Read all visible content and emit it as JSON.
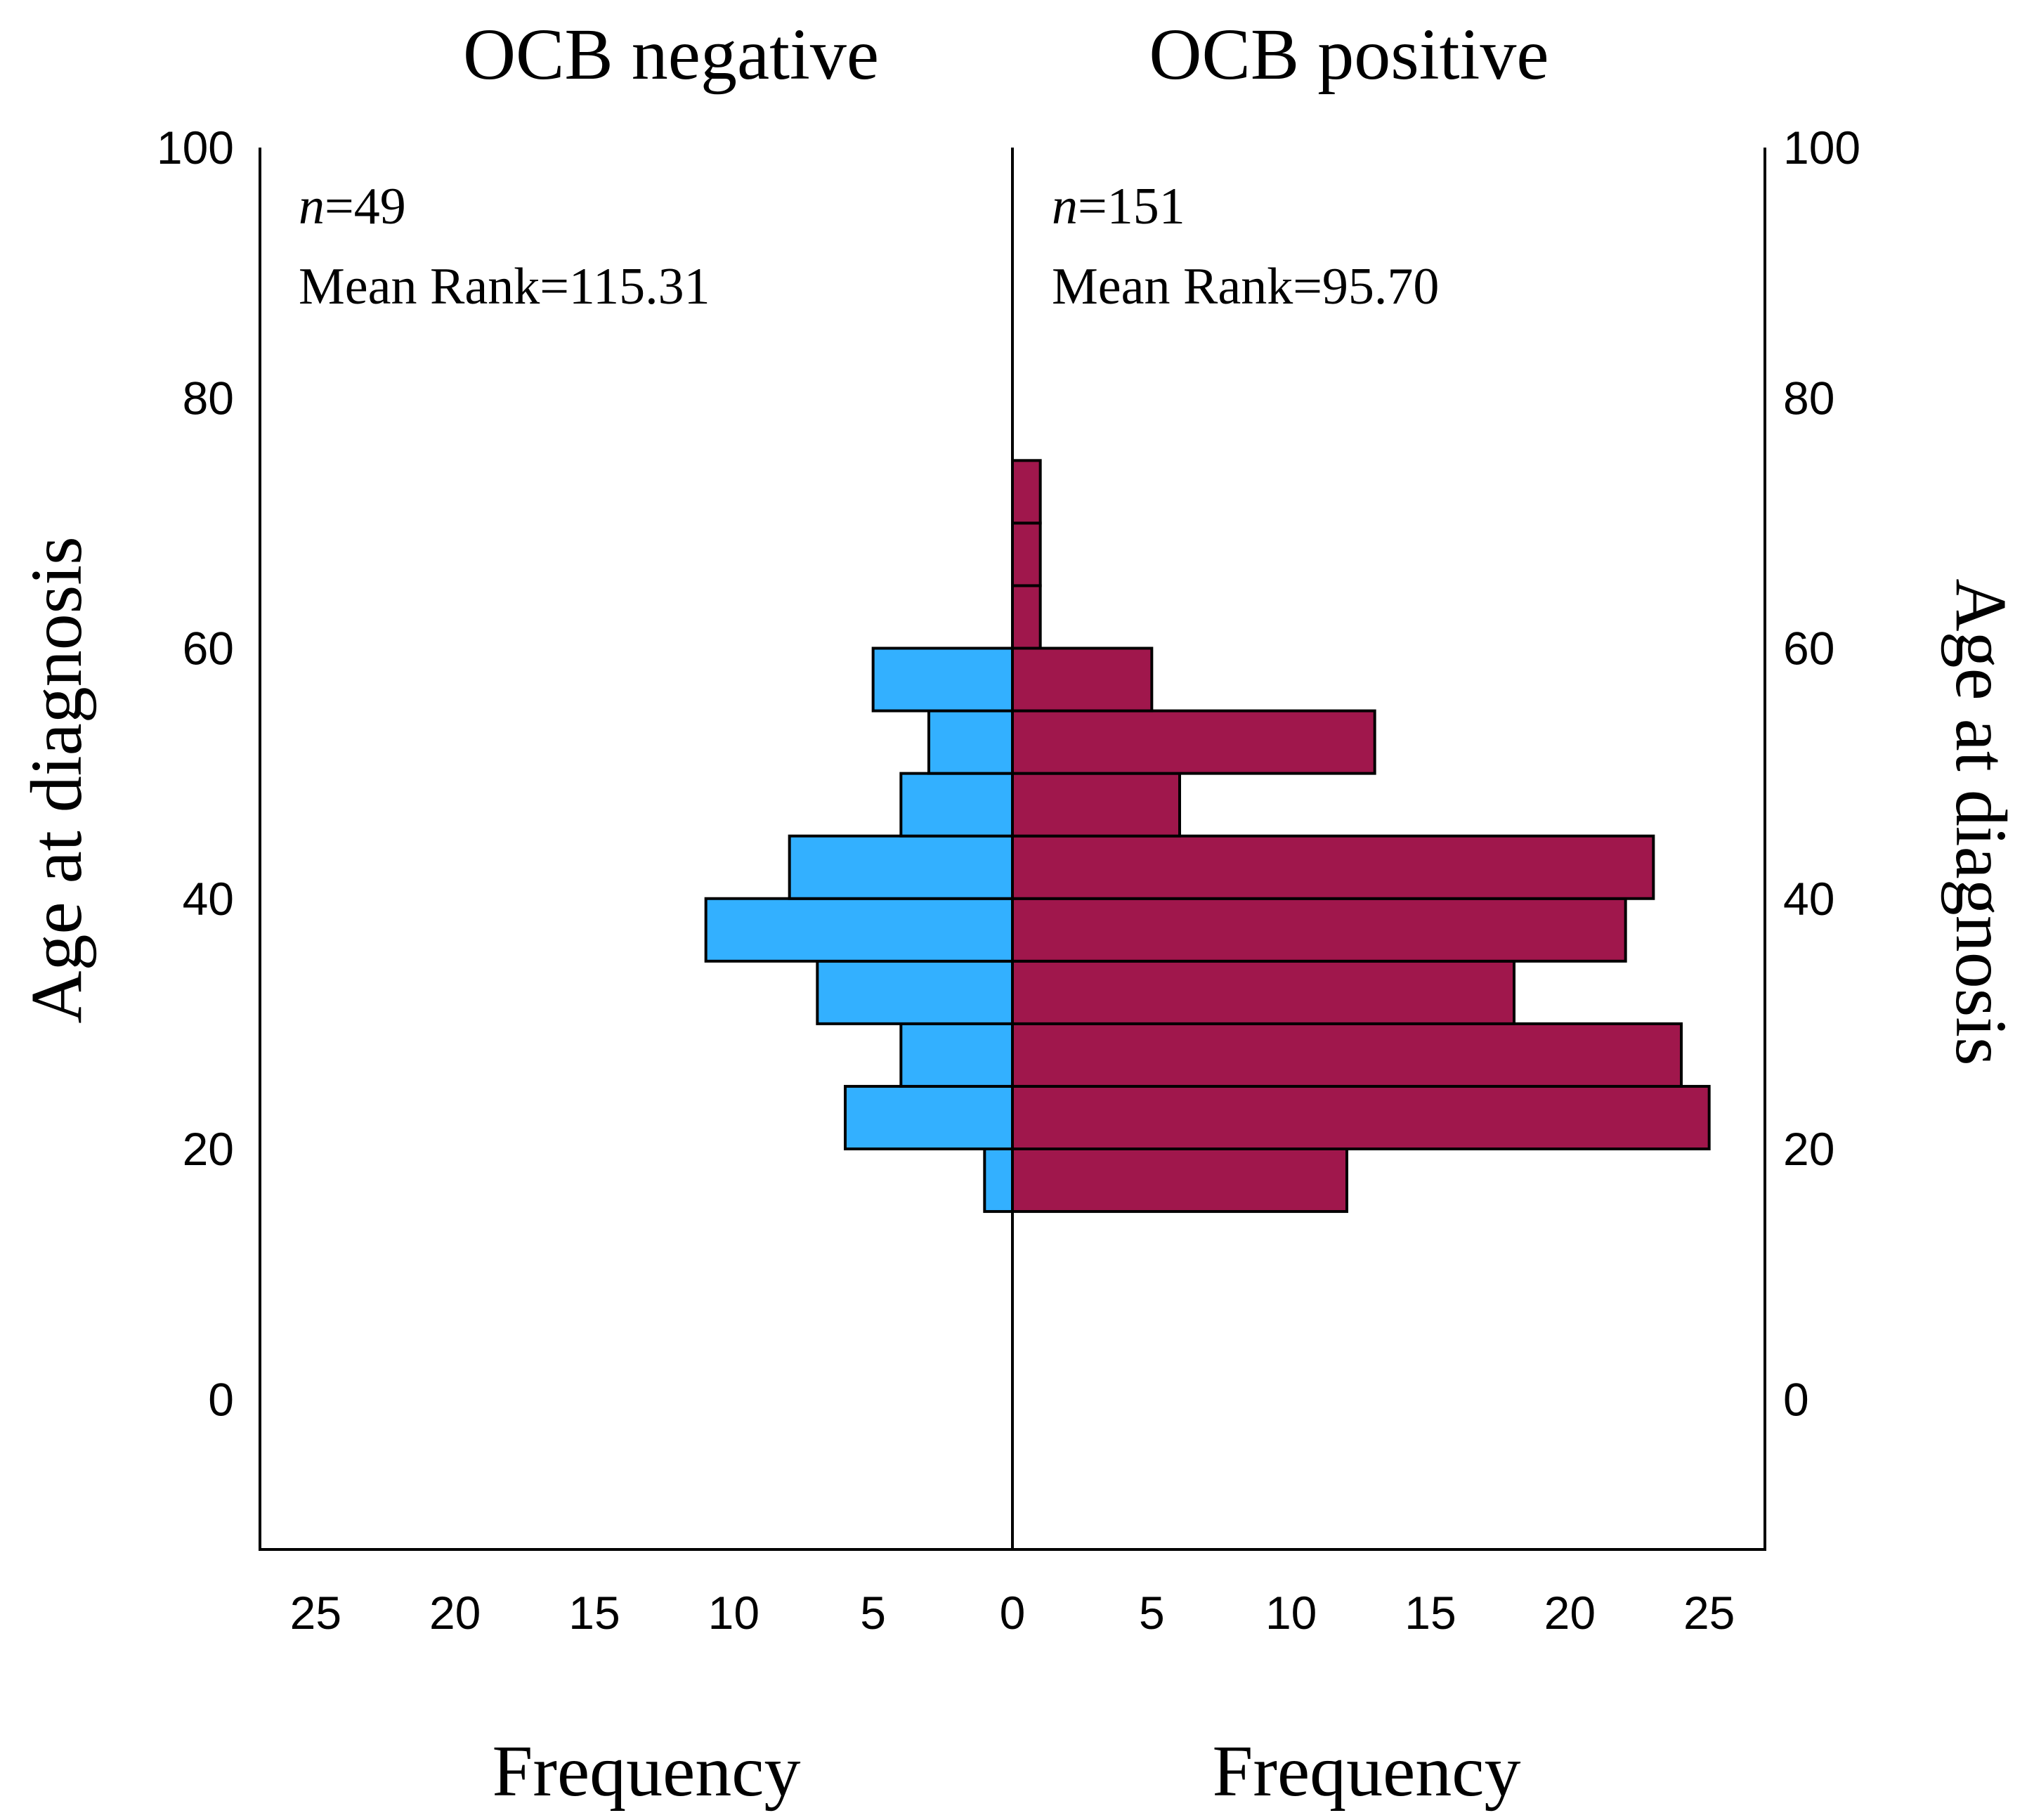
{
  "chart_data": {
    "type": "bar",
    "subtype": "population-pyramid",
    "orientation": "horizontal",
    "panels": [
      {
        "name": "OCB negative",
        "title": "OCB negative",
        "n_label": "n",
        "n_value": "=49",
        "mean_rank_label": "Mean Rank=115.31",
        "color": "#33b0ff",
        "xlabel": "Frequency",
        "xlim": [
          0,
          27
        ],
        "xticks": [
          "25",
          "20",
          "15",
          "10",
          "5",
          "0"
        ],
        "xtick_values": [
          25,
          20,
          15,
          10,
          5,
          0
        ]
      },
      {
        "name": "OCB positive",
        "title": "OCB positive",
        "n_label": "n",
        "n_value": "=151",
        "mean_rank_label": "Mean Rank=95.70",
        "color": "#a0174c",
        "xlabel": "Frequency",
        "xlim": [
          0,
          27
        ],
        "xticks": [
          "5",
          "10",
          "15",
          "20",
          "25"
        ],
        "xtick_values": [
          5,
          10,
          15,
          20,
          25
        ]
      }
    ],
    "bins": [
      {
        "from": 15,
        "to": 20
      },
      {
        "from": 20,
        "to": 25
      },
      {
        "from": 25,
        "to": 30
      },
      {
        "from": 30,
        "to": 35
      },
      {
        "from": 35,
        "to": 40
      },
      {
        "from": 40,
        "to": 45
      },
      {
        "from": 45,
        "to": 50
      },
      {
        "from": 50,
        "to": 55
      },
      {
        "from": 55,
        "to": 60
      },
      {
        "from": 60,
        "to": 65
      },
      {
        "from": 65,
        "to": 70
      },
      {
        "from": 70,
        "to": 75
      }
    ],
    "series": [
      {
        "name": "OCB negative",
        "values": [
          1,
          6,
          4,
          7,
          11,
          8,
          4,
          3,
          5,
          0,
          0,
          0
        ]
      },
      {
        "name": "OCB positive",
        "values": [
          12,
          25,
          24,
          18,
          22,
          23,
          6,
          13,
          5,
          1,
          1,
          1
        ]
      }
    ],
    "ylabel": "Age at diagnosis",
    "ylim": [
      -12,
      100
    ],
    "yticks": [
      "0",
      "20",
      "40",
      "60",
      "80",
      "100"
    ],
    "ytick_values": [
      0,
      20,
      40,
      60,
      80,
      100
    ]
  }
}
